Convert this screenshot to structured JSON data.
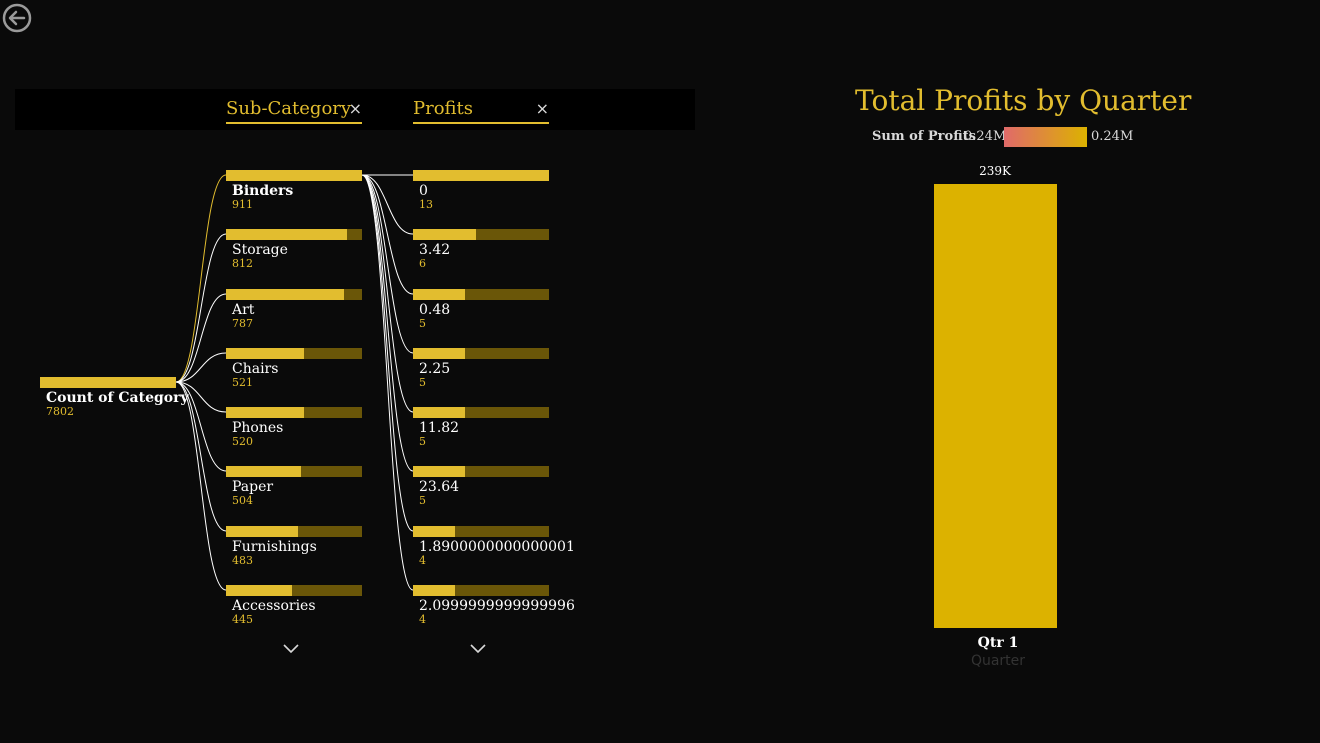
{
  "decomposition_tree": {
    "levels": [
      {
        "title": "Sub-Category",
        "close": "×"
      },
      {
        "title": "Profits",
        "close": "×"
      }
    ],
    "root": {
      "label": "Count of Category",
      "value": "7802",
      "fill": 1.0
    },
    "subcategory_nodes": [
      {
        "label": "Binders",
        "value": "911",
        "fill": 1.0,
        "selected": true
      },
      {
        "label": "Storage",
        "value": "812",
        "fill": 0.891
      },
      {
        "label": "Art",
        "value": "787",
        "fill": 0.864
      },
      {
        "label": "Chairs",
        "value": "521",
        "fill": 0.572
      },
      {
        "label": "Phones",
        "value": "520",
        "fill": 0.571
      },
      {
        "label": "Paper",
        "value": "504",
        "fill": 0.553
      },
      {
        "label": "Furnishings",
        "value": "483",
        "fill": 0.53
      },
      {
        "label": "Accessories",
        "value": "445",
        "fill": 0.488
      }
    ],
    "profit_nodes": [
      {
        "label": "0",
        "value": "13",
        "fill": 1.0
      },
      {
        "label": "3.42",
        "value": "6",
        "fill": 0.462
      },
      {
        "label": "0.48",
        "value": "5",
        "fill": 0.385
      },
      {
        "label": "2.25",
        "value": "5",
        "fill": 0.385
      },
      {
        "label": "11.82",
        "value": "5",
        "fill": 0.385
      },
      {
        "label": "23.64",
        "value": "5",
        "fill": 0.385
      },
      {
        "label": "1.8900000000000001",
        "value": "4",
        "fill": 0.308
      },
      {
        "label": "2.0999999999999996",
        "value": "4",
        "fill": 0.308
      }
    ],
    "colors": {
      "accent": "#e2bd2f",
      "track": "#6a5608"
    }
  },
  "chart_data": {
    "type": "bar",
    "title": "Total Profits by Quarter",
    "categories": [
      "Qtr 1"
    ],
    "values": [
      239000
    ],
    "data_labels": [
      "239K"
    ],
    "xlabel": "Quarter",
    "ylabel": "",
    "legend": {
      "title": "Sum of Profits",
      "min": "0.24M",
      "max": "0.24M"
    },
    "colors": {
      "bar": "#dcb200",
      "gradient_start": "#e06a6a",
      "gradient_end": "#dcb200"
    }
  }
}
